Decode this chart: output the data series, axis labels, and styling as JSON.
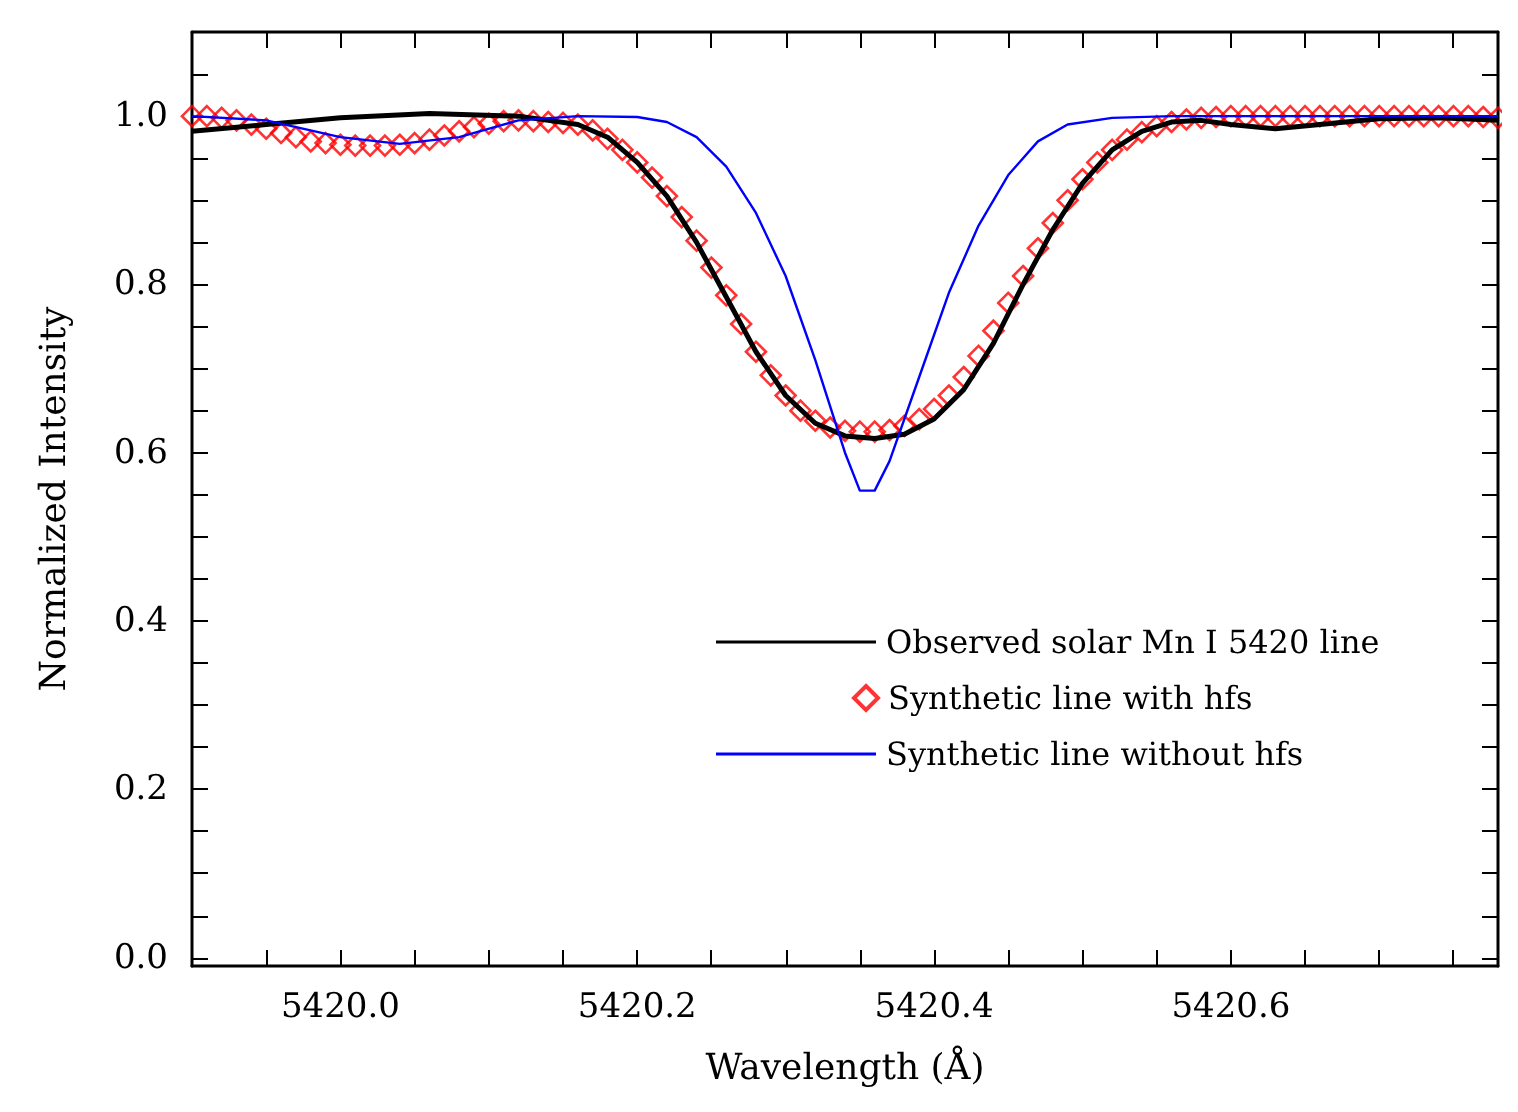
{
  "chart_data": {
    "type": "line",
    "xlabel": "Wavelength (Å)",
    "ylabel": "Normalized Intensity",
    "xlim": [
      5419.9,
      5420.78
    ],
    "ylim": [
      -0.01,
      1.1
    ],
    "xticks": [
      {
        "value": 5419.95,
        "label": null
      },
      {
        "value": 5420.0,
        "label": "5420.0"
      },
      {
        "value": 5420.05,
        "label": null
      },
      {
        "value": 5420.1,
        "label": null
      },
      {
        "value": 5420.15,
        "label": null
      },
      5420.2,
      {
        "value": 5420.25,
        "label": null
      },
      {
        "value": 5420.3,
        "label": null
      },
      {
        "value": 5420.35,
        "label": null
      },
      5420.4,
      {
        "value": 5420.45,
        "label": null
      },
      {
        "value": 5420.5,
        "label": null
      },
      {
        "value": 5420.55,
        "label": null
      },
      5420.6,
      {
        "value": 5420.65,
        "label": null
      },
      {
        "value": 5420.7,
        "label": null
      },
      {
        "value": 5420.75,
        "label": null
      }
    ],
    "yticks": [
      {
        "value": 0,
        "label": "0.0"
      },
      {
        "value": 0.05,
        "label": null
      },
      {
        "value": 0.1,
        "label": null
      },
      {
        "value": 0.15,
        "label": null
      },
      0.2,
      {
        "value": 0.25,
        "label": null
      },
      {
        "value": 0.3,
        "label": null
      },
      {
        "value": 0.35,
        "label": null
      },
      0.4,
      {
        "value": 0.45,
        "label": null
      },
      {
        "value": 0.5,
        "label": null
      },
      {
        "value": 0.55,
        "label": null
      },
      0.6,
      {
        "value": 0.65,
        "label": null
      },
      {
        "value": 0.7,
        "label": null
      },
      {
        "value": 0.75,
        "label": null
      },
      0.8,
      {
        "value": 0.85,
        "label": null
      },
      {
        "value": 0.9,
        "label": null
      },
      {
        "value": 0.95,
        "label": null
      },
      {
        "value": 1,
        "label": "1.0"
      },
      {
        "value": 1.05,
        "label": null
      }
    ],
    "grid": false,
    "legend": "right",
    "series": [
      {
        "name": "Observed solar Mn I 5420 line",
        "color": "#000000",
        "marker": "none",
        "x": [
          5419.9,
          5419.95,
          5420.0,
          5420.06,
          5420.12,
          5420.16,
          5420.18,
          5420.2,
          5420.22,
          5420.24,
          5420.26,
          5420.28,
          5420.3,
          5420.32,
          5420.34,
          5420.36,
          5420.38,
          5420.4,
          5420.42,
          5420.44,
          5420.46,
          5420.48,
          5420.5,
          5420.52,
          5420.54,
          5420.56,
          5420.58,
          5420.6,
          5420.63,
          5420.66,
          5420.7,
          5420.74,
          5420.78
        ],
        "values": [
          0.982,
          0.99,
          0.998,
          1.003,
          1.0,
          0.99,
          0.975,
          0.945,
          0.905,
          0.85,
          0.785,
          0.72,
          0.668,
          0.635,
          0.62,
          0.617,
          0.622,
          0.64,
          0.675,
          0.73,
          0.8,
          0.865,
          0.92,
          0.96,
          0.982,
          0.993,
          0.995,
          0.99,
          0.985,
          0.99,
          0.997,
          0.998,
          0.995
        ]
      },
      {
        "name": "Synthetic line with hfs",
        "color": "#ff0000",
        "type": "scatter",
        "marker": "diamond",
        "x": [
          5419.9,
          5419.91,
          5419.92,
          5419.93,
          5419.94,
          5419.95,
          5419.96,
          5419.97,
          5419.98,
          5419.99,
          5420.0,
          5420.01,
          5420.02,
          5420.03,
          5420.04,
          5420.05,
          5420.06,
          5420.07,
          5420.08,
          5420.09,
          5420.1,
          5420.11,
          5420.12,
          5420.13,
          5420.14,
          5420.15,
          5420.16,
          5420.17,
          5420.18,
          5420.19,
          5420.2,
          5420.21,
          5420.22,
          5420.23,
          5420.24,
          5420.25,
          5420.26,
          5420.27,
          5420.28,
          5420.29,
          5420.3,
          5420.31,
          5420.32,
          5420.33,
          5420.34,
          5420.35,
          5420.36,
          5420.37,
          5420.38,
          5420.39,
          5420.4,
          5420.41,
          5420.42,
          5420.43,
          5420.44,
          5420.45,
          5420.46,
          5420.47,
          5420.48,
          5420.49,
          5420.5,
          5420.51,
          5420.52,
          5420.53,
          5420.54,
          5420.55,
          5420.56,
          5420.57,
          5420.58,
          5420.59,
          5420.6,
          5420.61,
          5420.62,
          5420.63,
          5420.64,
          5420.65,
          5420.66,
          5420.67,
          5420.68,
          5420.69,
          5420.7,
          5420.71,
          5420.72,
          5420.73,
          5420.74,
          5420.75,
          5420.76,
          5420.77,
          5420.78
        ],
        "values": [
          1.0,
          1.0,
          0.998,
          0.995,
          0.99,
          0.985,
          0.98,
          0.975,
          0.97,
          0.968,
          0.966,
          0.965,
          0.965,
          0.965,
          0.966,
          0.968,
          0.972,
          0.977,
          0.982,
          0.987,
          0.991,
          0.994,
          0.995,
          0.994,
          0.993,
          0.992,
          0.99,
          0.983,
          0.973,
          0.96,
          0.945,
          0.927,
          0.905,
          0.88,
          0.852,
          0.82,
          0.787,
          0.753,
          0.72,
          0.692,
          0.668,
          0.65,
          0.638,
          0.63,
          0.626,
          0.625,
          0.625,
          0.627,
          0.632,
          0.64,
          0.652,
          0.668,
          0.69,
          0.715,
          0.745,
          0.778,
          0.81,
          0.843,
          0.873,
          0.9,
          0.925,
          0.945,
          0.96,
          0.972,
          0.981,
          0.988,
          0.993,
          0.996,
          0.998,
          0.999,
          1.0,
          1.0,
          1.0,
          1.0,
          1.0,
          1.0,
          1.0,
          1.0,
          1.0,
          1.0,
          1.0,
          1.0,
          1.0,
          1.0,
          1.0,
          1.0,
          1.0,
          0.999,
          0.998
        ]
      },
      {
        "name": "Synthetic line without hfs",
        "color": "#0000ff",
        "marker": "none",
        "x": [
          5419.9,
          5419.95,
          5420.0,
          5420.04,
          5420.08,
          5420.12,
          5420.16,
          5420.2,
          5420.22,
          5420.24,
          5420.26,
          5420.28,
          5420.3,
          5420.32,
          5420.34,
          5420.35,
          5420.36,
          5420.37,
          5420.39,
          5420.41,
          5420.43,
          5420.45,
          5420.47,
          5420.49,
          5420.52,
          5420.56,
          5420.78
        ],
        "values": [
          1.0,
          0.995,
          0.975,
          0.967,
          0.975,
          0.995,
          1.0,
          0.999,
          0.993,
          0.975,
          0.94,
          0.885,
          0.81,
          0.71,
          0.6,
          0.555,
          0.555,
          0.59,
          0.69,
          0.79,
          0.87,
          0.93,
          0.97,
          0.99,
          0.998,
          1.0,
          1.0
        ]
      }
    ]
  }
}
